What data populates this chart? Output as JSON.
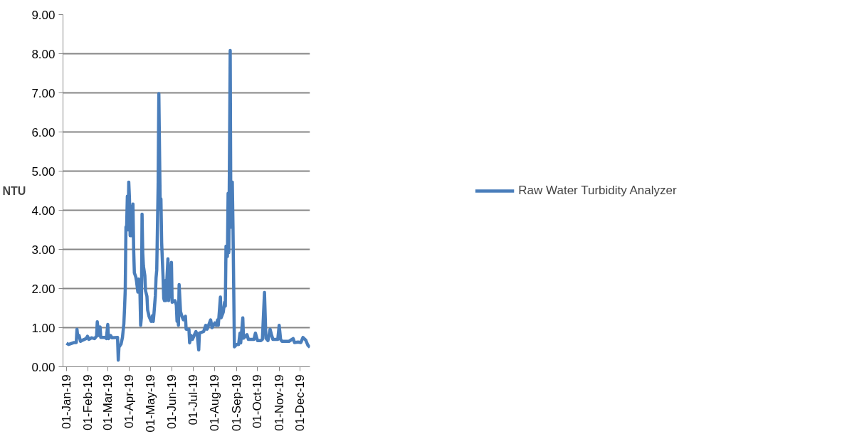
{
  "chart_data": {
    "type": "line",
    "ylabel": "NTU",
    "x": [
      "2019-01-01",
      "2019-01-04",
      "2019-01-12",
      "2019-01-15",
      "2019-01-16",
      "2019-01-17",
      "2019-01-19",
      "2019-01-21",
      "2019-01-24",
      "2019-01-29",
      "2019-01-31",
      "2019-02-02",
      "2019-02-06",
      "2019-02-10",
      "2019-02-13",
      "2019-02-14",
      "2019-02-16",
      "2019-02-18",
      "2019-02-19",
      "2019-02-25",
      "2019-02-27",
      "2019-03-01",
      "2019-03-02",
      "2019-03-05",
      "2019-03-07",
      "2019-03-15",
      "2019-03-16",
      "2019-03-17",
      "2019-03-20",
      "2019-03-22",
      "2019-03-24",
      "2019-03-25",
      "2019-03-26",
      "2019-03-27",
      "2019-03-28",
      "2019-03-29",
      "2019-03-30",
      "2019-03-31",
      "2019-04-01",
      "2019-04-02",
      "2019-04-03",
      "2019-04-04",
      "2019-04-05",
      "2019-04-06",
      "2019-04-07",
      "2019-04-08",
      "2019-04-10",
      "2019-04-11",
      "2019-04-13",
      "2019-04-14",
      "2019-04-15",
      "2019-04-16",
      "2019-04-17",
      "2019-04-18",
      "2019-04-19",
      "2019-04-20",
      "2019-04-21",
      "2019-04-23",
      "2019-04-24",
      "2019-04-26",
      "2019-04-27",
      "2019-04-29",
      "2019-05-02",
      "2019-05-04",
      "2019-05-05",
      "2019-05-06",
      "2019-05-08",
      "2019-05-09",
      "2019-05-10",
      "2019-05-12",
      "2019-05-13",
      "2019-05-14",
      "2019-05-15",
      "2019-05-16",
      "2019-05-17",
      "2019-05-19",
      "2019-05-20",
      "2019-05-21",
      "2019-05-22",
      "2019-05-23",
      "2019-05-26",
      "2019-05-27",
      "2019-05-31",
      "2019-06-01",
      "2019-06-05",
      "2019-06-07",
      "2019-06-08",
      "2019-06-09",
      "2019-06-10",
      "2019-06-11",
      "2019-06-13",
      "2019-06-15",
      "2019-06-17",
      "2019-06-20",
      "2019-06-21",
      "2019-06-25",
      "2019-06-26",
      "2019-06-28",
      "2019-06-30",
      "2019-07-05",
      "2019-07-07",
      "2019-07-09",
      "2019-07-10",
      "2019-07-16",
      "2019-07-19",
      "2019-07-21",
      "2019-07-26",
      "2019-07-28",
      "2019-08-01",
      "2019-08-03",
      "2019-08-05",
      "2019-08-06",
      "2019-08-09",
      "2019-08-10",
      "2019-08-13",
      "2019-08-15",
      "2019-08-16",
      "2019-08-17",
      "2019-08-19",
      "2019-08-20",
      "2019-08-21",
      "2019-08-23",
      "2019-08-24",
      "2019-08-26",
      "2019-08-27",
      "2019-08-29",
      "2019-09-01",
      "2019-09-04",
      "2019-09-06",
      "2019-09-07",
      "2019-09-10",
      "2019-09-11",
      "2019-09-16",
      "2019-09-18",
      "2019-09-26",
      "2019-09-28",
      "2019-10-01",
      "2019-10-06",
      "2019-10-08",
      "2019-10-11",
      "2019-10-13",
      "2019-10-16",
      "2019-10-19",
      "2019-10-21",
      "2019-10-23",
      "2019-10-27",
      "2019-10-30",
      "2019-11-01",
      "2019-11-03",
      "2019-11-05",
      "2019-11-10",
      "2019-11-15",
      "2019-11-21",
      "2019-11-23",
      "2019-11-28",
      "2019-12-02",
      "2019-12-05",
      "2019-12-09",
      "2019-12-12",
      "2019-12-15"
    ],
    "series": [
      {
        "name": "Raw Water Turbidity Analyzer",
        "color": "#4a7ebb",
        "values": [
          0.6,
          0.57,
          0.62,
          0.62,
          0.96,
          0.78,
          0.8,
          0.65,
          0.68,
          0.72,
          0.78,
          0.7,
          0.74,
          0.72,
          0.78,
          1.15,
          0.8,
          1.02,
          0.75,
          0.75,
          0.72,
          1.08,
          0.72,
          0.8,
          0.74,
          0.75,
          0.17,
          0.5,
          0.58,
          0.75,
          1.1,
          1.5,
          1.98,
          3.57,
          3.6,
          4.36,
          3.5,
          4.72,
          4.3,
          3.35,
          4.1,
          3.35,
          3.8,
          4.16,
          3.0,
          2.4,
          2.3,
          2.2,
          1.91,
          2.24,
          2.08,
          1.9,
          1.06,
          1.25,
          3.9,
          2.9,
          2.57,
          2.33,
          1.94,
          1.8,
          1.45,
          1.29,
          1.16,
          1.31,
          1.16,
          1.35,
          1.81,
          2.27,
          2.47,
          4.63,
          6.98,
          5.47,
          4.04,
          4.29,
          3.18,
          2.3,
          1.75,
          1.69,
          2.2,
          1.69,
          2.76,
          1.69,
          2.67,
          1.65,
          1.69,
          1.58,
          1.16,
          1.35,
          1.06,
          2.1,
          1.41,
          1.29,
          1.2,
          1.29,
          0.96,
          0.96,
          0.61,
          0.8,
          0.7,
          0.9,
          0.8,
          0.43,
          0.86,
          0.9,
          1.06,
          0.96,
          1.2,
          1.0,
          1.12,
          1.06,
          1.2,
          1.06,
          1.78,
          1.25,
          1.39,
          1.65,
          1.55,
          3.08,
          2.82,
          4.43,
          2.92,
          8.08,
          3.57,
          4.72,
          3.57,
          0.51,
          0.57,
          0.57,
          0.86,
          0.61,
          1.25,
          0.73,
          0.82,
          0.7,
          0.7,
          0.86,
          0.67,
          0.67,
          0.7,
          1.9,
          0.73,
          0.67,
          0.96,
          0.82,
          0.7,
          0.7,
          0.7,
          1.06,
          0.7,
          0.65,
          0.65,
          0.65,
          0.72,
          0.62,
          0.63,
          0.62,
          0.75,
          0.68,
          0.55,
          0.5
        ]
      }
    ],
    "xlim": [
      "2018-12-27",
      "2019-12-15"
    ],
    "xticks": [
      {
        "value": "2019-01-01",
        "label": "01-Jan-19"
      },
      {
        "value": "2019-02-01",
        "label": "01-Feb-19"
      },
      {
        "value": "2019-03-01",
        "label": "01-Mar-19"
      },
      {
        "value": "2019-04-01",
        "label": "01-Apr-19"
      },
      {
        "value": "2019-05-01",
        "label": "01-May-19"
      },
      {
        "value": "2019-06-01",
        "label": "01-Jun-19"
      },
      {
        "value": "2019-07-01",
        "label": "01-Jul-19"
      },
      {
        "value": "2019-08-01",
        "label": "01-Aug-19"
      },
      {
        "value": "2019-09-01",
        "label": "01-Sep-19"
      },
      {
        "value": "2019-10-01",
        "label": "01-Oct-19"
      },
      {
        "value": "2019-11-01",
        "label": "01-Nov-19"
      },
      {
        "value": "2019-12-01",
        "label": "01-Dec-19"
      }
    ],
    "ylim": [
      0,
      9
    ],
    "yticks": [
      {
        "value": 0,
        "label": "0.00"
      },
      {
        "value": 1,
        "label": "1.00"
      },
      {
        "value": 2,
        "label": "2.00"
      },
      {
        "value": 3,
        "label": "3.00"
      },
      {
        "value": 4,
        "label": "4.00"
      },
      {
        "value": 5,
        "label": "5.00"
      },
      {
        "value": 6,
        "label": "6.00"
      },
      {
        "value": 7,
        "label": "7.00"
      },
      {
        "value": 8,
        "label": "8.00"
      },
      {
        "value": 9,
        "label": "9.00"
      }
    ],
    "grid": "y",
    "legend": "right",
    "marker": "none",
    "line_style": "solid"
  }
}
